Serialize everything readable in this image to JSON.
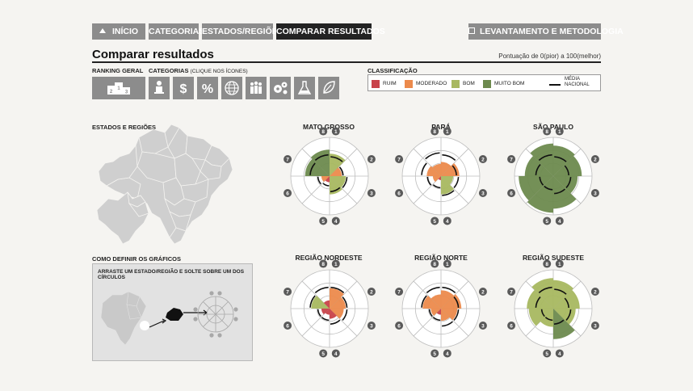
{
  "nav": {
    "home": "INÍCIO",
    "categorias": "CATEGORIAS",
    "estados": "ESTADOS/REGIÕES",
    "comparar": "COMPARAR RESULTADOS",
    "levantamento": "LEVANTAMENTO E METODOLOGIA"
  },
  "page": {
    "title": "Comparar resultados",
    "scale_note": "Pontuação de 0(pior) a 100(melhor)"
  },
  "ranking": {
    "label": "RANKING GERAL",
    "podium": [
      "2",
      "1",
      "3"
    ]
  },
  "categories": {
    "label": "CATEGORIAS",
    "hint": "(CLIQUE NOS ÍCONES)",
    "icons": [
      "person-icon",
      "dollar-icon",
      "percent-icon",
      "globe-icon",
      "people-icon",
      "gears-icon",
      "flask-icon",
      "leaf-icon"
    ],
    "glyphs": [
      "",
      "$",
      "%",
      "",
      "",
      "",
      "",
      ""
    ]
  },
  "classification": {
    "label": "CLASSIFICAÇÃO",
    "items": [
      {
        "name": "RUIM",
        "color": "#c8424a"
      },
      {
        "name": "MODERADO",
        "color": "#ec8a4c"
      },
      {
        "name": "BOM",
        "color": "#a8b860"
      },
      {
        "name": "MUITO BOM",
        "color": "#6d8a4e"
      }
    ],
    "national_line": "MÉDIA NACIONAL"
  },
  "map": {
    "label": "ESTADOS E REGIÕES"
  },
  "howto": {
    "label": "COMO DEFINIR OS GRÁFICOS",
    "instruction": "ARRASTE UM ESTADO/REGIÃO E SOLTE SOBRE UM DOS CÍRCULOS"
  },
  "chart_data": [
    {
      "type": "polar-area",
      "title": "MATO GROSSO",
      "categories": [
        "1",
        "2",
        "3",
        "4",
        "5",
        "6",
        "7",
        "8"
      ],
      "values": [
        55,
        30,
        40,
        45,
        15,
        20,
        60,
        65
      ],
      "colors": [
        "#a8b860",
        "#ec8a4c",
        "#a8b860",
        "#a8b860",
        "#c8424a",
        "#ec8a4c",
        "#6d8a4e",
        "#6d8a4e"
      ],
      "national": [
        50,
        35,
        45,
        40,
        25,
        30,
        50,
        55
      ]
    },
    {
      "type": "polar-area",
      "title": "PARÁ",
      "categories": [
        "1",
        "2",
        "3",
        "4",
        "5",
        "6",
        "7",
        "8"
      ],
      "values": [
        35,
        45,
        30,
        45,
        10,
        20,
        35,
        30
      ],
      "colors": [
        "#ec8a4c",
        "#ec8a4c",
        "#a8b860",
        "#a8b860",
        "#c8424a",
        "#ec8a4c",
        "#ec8a4c",
        "#ec8a4c"
      ],
      "national": [
        55,
        40,
        45,
        50,
        30,
        35,
        50,
        60
      ]
    },
    {
      "type": "polar-area",
      "title": "SÃO PAULO",
      "categories": [
        "1",
        "2",
        "3",
        "4",
        "5",
        "6",
        "7",
        "8"
      ],
      "values": [
        75,
        70,
        60,
        80,
        90,
        85,
        70,
        80
      ],
      "colors": [
        "#6d8a4e",
        "#6d8a4e",
        "#6d8a4e",
        "#6d8a4e",
        "#6d8a4e",
        "#6d8a4e",
        "#6d8a4e",
        "#6d8a4e"
      ],
      "national": [
        50,
        40,
        45,
        45,
        35,
        35,
        45,
        55
      ]
    },
    {
      "type": "polar-area",
      "title": "REGIÃO NORDESTE",
      "categories": [
        "1",
        "2",
        "3",
        "4",
        "5",
        "6",
        "7",
        "8"
      ],
      "values": [
        50,
        40,
        35,
        25,
        15,
        20,
        45,
        20
      ],
      "colors": [
        "#ec8a4c",
        "#ec8a4c",
        "#ec8a4c",
        "#c8424a",
        "#c8424a",
        "#c8424a",
        "#a8b860",
        "#c8424a"
      ],
      "national": [
        55,
        45,
        45,
        40,
        30,
        30,
        50,
        55
      ]
    },
    {
      "type": "polar-area",
      "title": "REGIÃO NORTE",
      "categories": [
        "1",
        "2",
        "3",
        "4",
        "5",
        "6",
        "7",
        "8"
      ],
      "values": [
        45,
        50,
        40,
        30,
        15,
        25,
        45,
        35
      ],
      "colors": [
        "#ec8a4c",
        "#ec8a4c",
        "#ec8a4c",
        "#ec8a4c",
        "#c8424a",
        "#ec8a4c",
        "#ec8a4c",
        "#ec8a4c"
      ],
      "national": [
        55,
        45,
        45,
        45,
        30,
        30,
        50,
        55
      ]
    },
    {
      "type": "polar-area",
      "title": "REGIÃO SUDESTE",
      "categories": [
        "1",
        "2",
        "3",
        "4",
        "5",
        "6",
        "7",
        "8"
      ],
      "values": [
        70,
        65,
        55,
        75,
        45,
        60,
        65,
        75
      ],
      "colors": [
        "#a8b860",
        "#a8b860",
        "#a8b860",
        "#6d8a4e",
        "#a8b860",
        "#a8b860",
        "#a8b860",
        "#a8b860"
      ],
      "national": [
        50,
        40,
        45,
        40,
        30,
        30,
        45,
        55
      ]
    }
  ]
}
